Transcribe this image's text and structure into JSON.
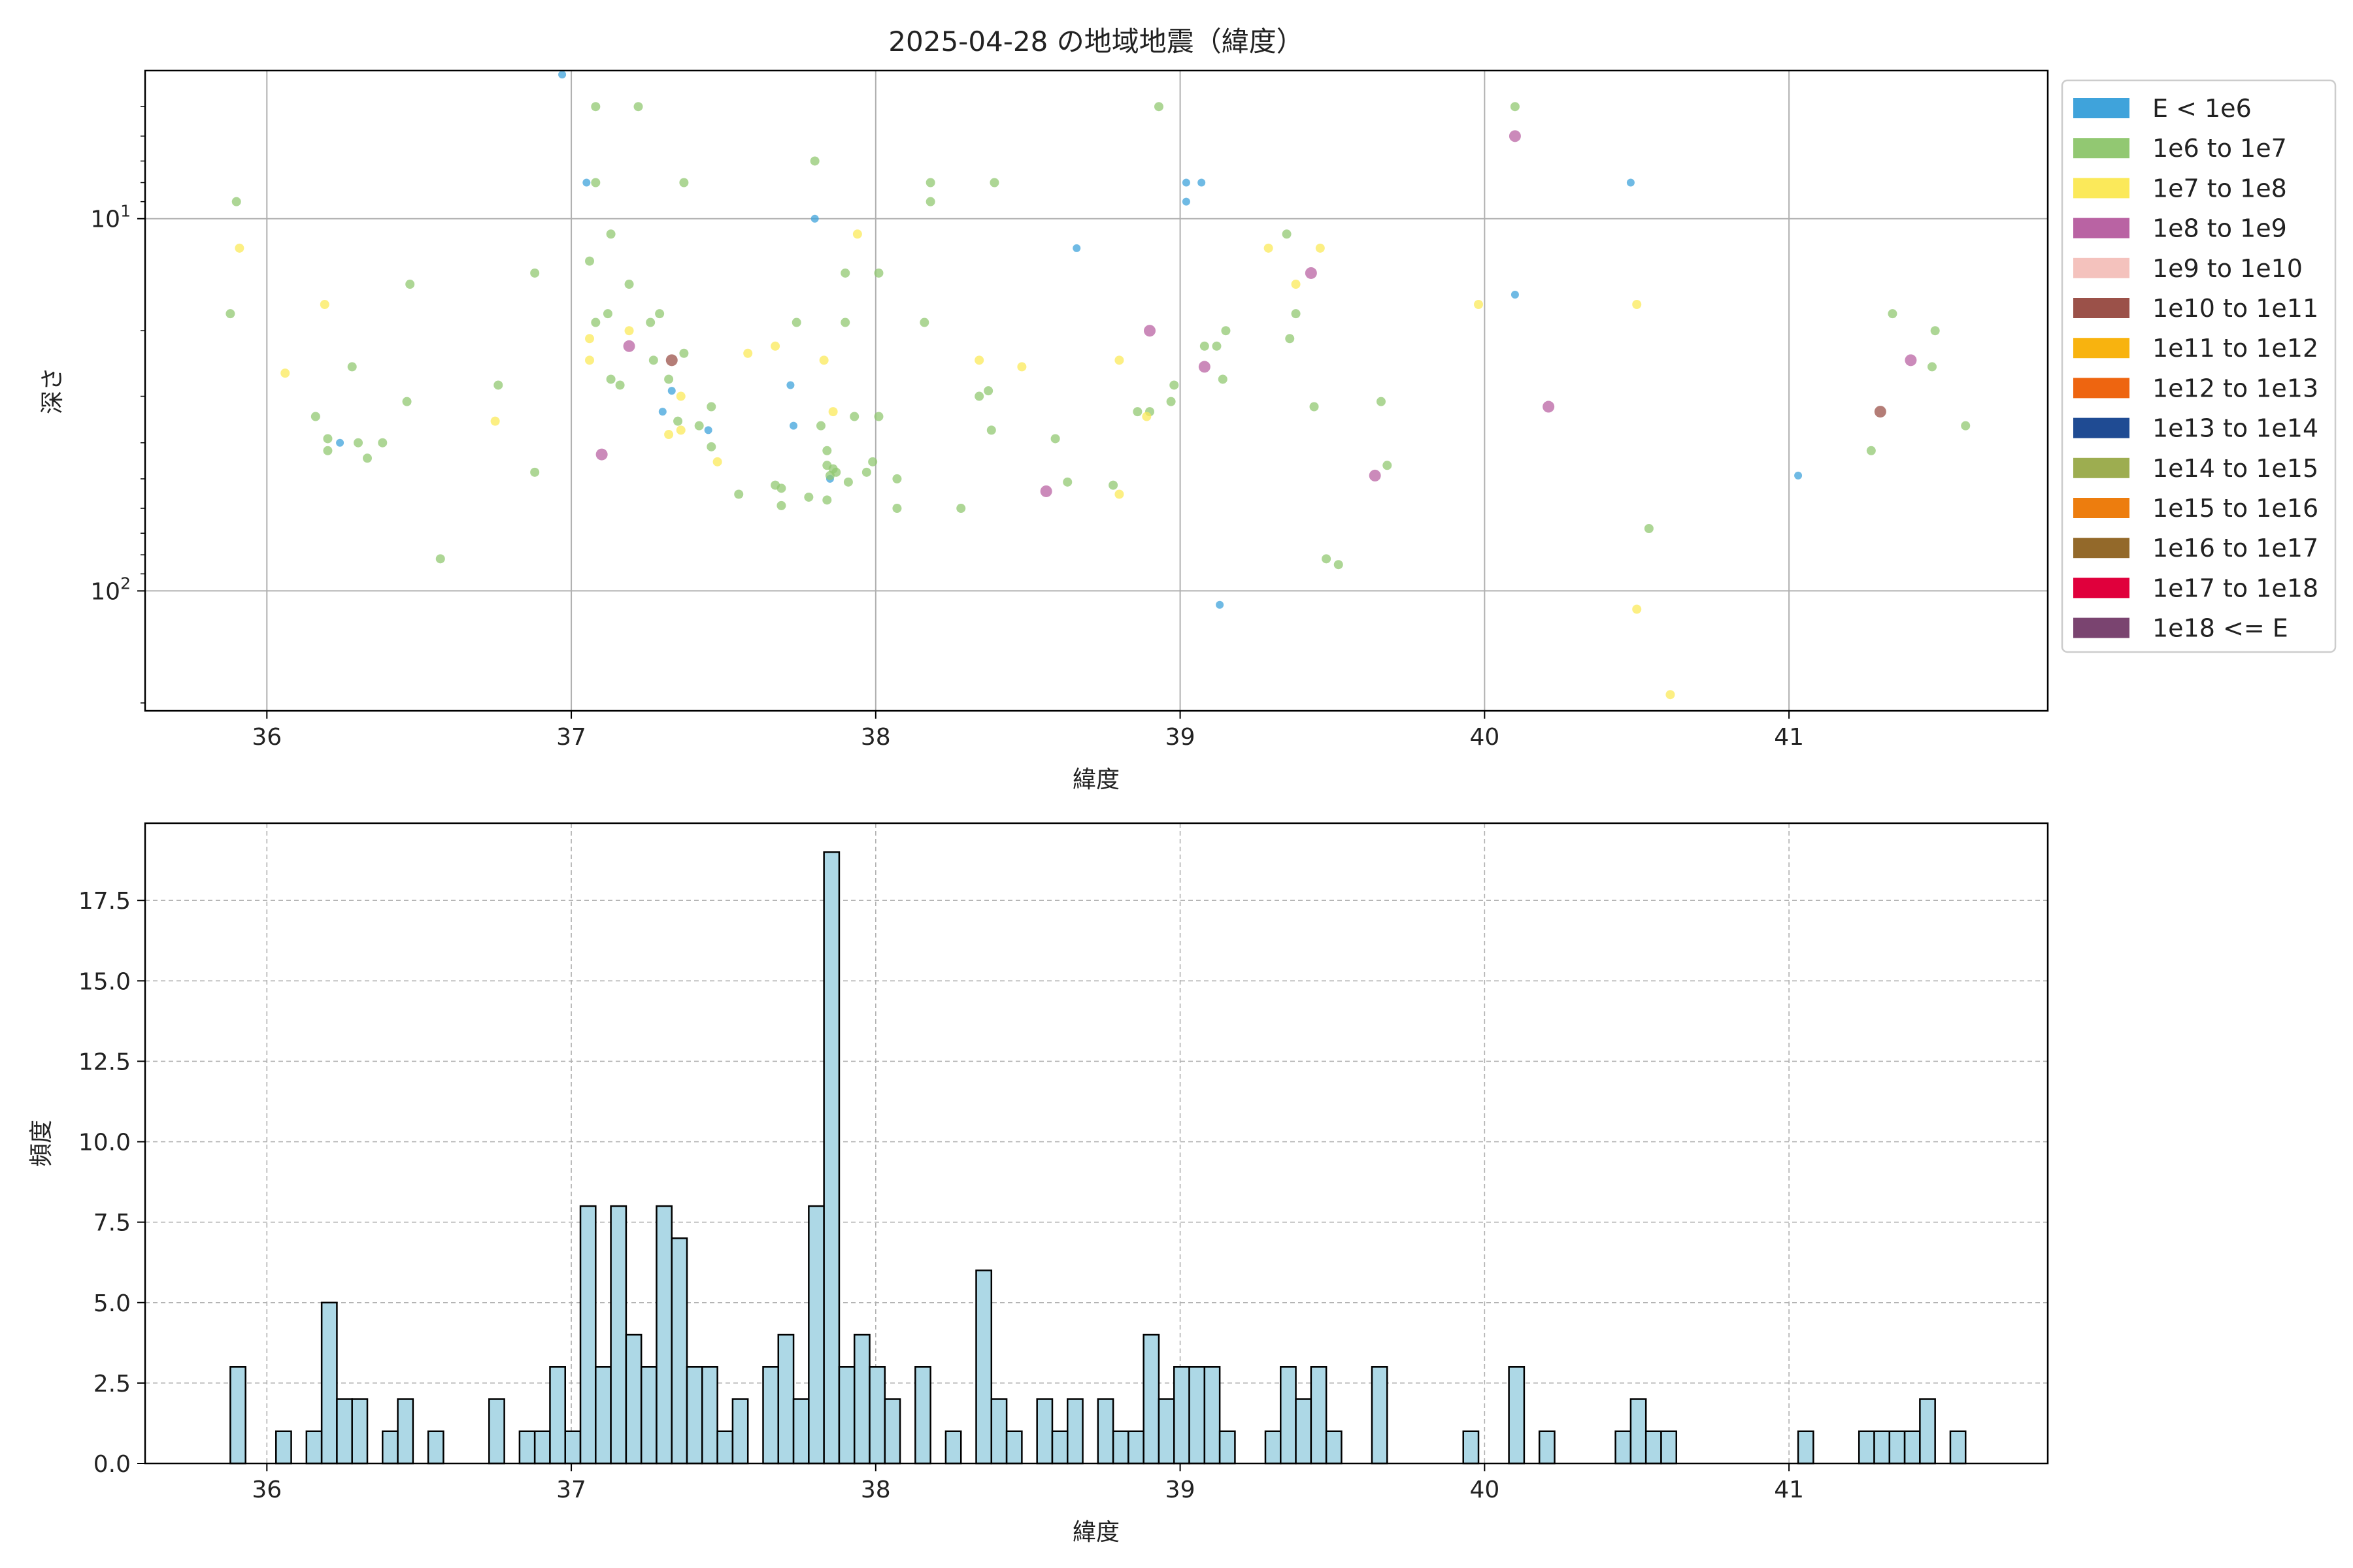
{
  "chart_data": [
    {
      "type": "scatter",
      "title": "2025-04-28 の地域地震（緯度）",
      "xlabel": "緯度",
      "ylabel": "深さ",
      "yscale": "log",
      "y_inverted": true,
      "xlim": [
        35.6,
        41.85
      ],
      "ylim": [
        4,
        210
      ],
      "xticks": [
        36,
        37,
        38,
        39,
        40,
        41
      ],
      "yticks": [
        {
          "value": 10,
          "label": "10^1"
        },
        {
          "value": 100,
          "label": "10^2"
        }
      ],
      "grid": true,
      "legend_position": "right-outside",
      "legend": [
        {
          "label": "E < 1e6",
          "color": "#3fa3db"
        },
        {
          "label": "1e6 to 1e7",
          "color": "#92c872"
        },
        {
          "label": "1e7 to 1e8",
          "color": "#fbe95a"
        },
        {
          "label": "1e8 to 1e9",
          "color": "#b963a3"
        },
        {
          "label": "1e9 to 1e10",
          "color": "#f4c2bd"
        },
        {
          "label": "1e10 to 1e11",
          "color": "#9b5149"
        },
        {
          "label": "1e11 to 1e12",
          "color": "#f8b30f"
        },
        {
          "label": "1e12 to 1e13",
          "color": "#ee6510"
        },
        {
          "label": "1e13 to 1e14",
          "color": "#1f4b93"
        },
        {
          "label": "1e14 to 1e15",
          "color": "#9dad50"
        },
        {
          "label": "1e15 to 1e16",
          "color": "#ed7d0e"
        },
        {
          "label": "1e16 to 1e17",
          "color": "#93692a"
        },
        {
          "label": "1e17 to 1e18",
          "color": "#e0003c"
        },
        {
          "label": "1e18 <= E",
          "color": "#7a4470"
        }
      ],
      "points": [
        {
          "x": 36.97,
          "y": 4.1,
          "c": 0
        },
        {
          "x": 37.05,
          "y": 8,
          "c": 0
        },
        {
          "x": 37.8,
          "y": 10,
          "c": 0
        },
        {
          "x": 39.02,
          "y": 8,
          "c": 0
        },
        {
          "x": 39.07,
          "y": 8,
          "c": 0
        },
        {
          "x": 39.02,
          "y": 9,
          "c": 0
        },
        {
          "x": 38.66,
          "y": 12,
          "c": 0
        },
        {
          "x": 40.1,
          "y": 16,
          "c": 0
        },
        {
          "x": 40.48,
          "y": 8,
          "c": 0
        },
        {
          "x": 36.24,
          "y": 40,
          "c": 0
        },
        {
          "x": 37.3,
          "y": 33,
          "c": 0
        },
        {
          "x": 37.33,
          "y": 29,
          "c": 0
        },
        {
          "x": 37.45,
          "y": 37,
          "c": 0
        },
        {
          "x": 37.72,
          "y": 28,
          "c": 0
        },
        {
          "x": 37.73,
          "y": 36,
          "c": 0
        },
        {
          "x": 37.85,
          "y": 50,
          "c": 0
        },
        {
          "x": 39.13,
          "y": 109,
          "c": 0
        },
        {
          "x": 41.03,
          "y": 49,
          "c": 0
        },
        {
          "x": 35.88,
          "y": 18,
          "c": 1
        },
        {
          "x": 35.9,
          "y": 9,
          "c": 1
        },
        {
          "x": 36.16,
          "y": 34,
          "c": 1
        },
        {
          "x": 36.2,
          "y": 39,
          "c": 1
        },
        {
          "x": 36.2,
          "y": 42,
          "c": 1
        },
        {
          "x": 36.28,
          "y": 25,
          "c": 1
        },
        {
          "x": 36.3,
          "y": 40,
          "c": 1
        },
        {
          "x": 36.33,
          "y": 44,
          "c": 1
        },
        {
          "x": 36.38,
          "y": 40,
          "c": 1
        },
        {
          "x": 36.46,
          "y": 31,
          "c": 1
        },
        {
          "x": 36.47,
          "y": 15,
          "c": 1
        },
        {
          "x": 36.57,
          "y": 82,
          "c": 1
        },
        {
          "x": 36.76,
          "y": 28,
          "c": 1
        },
        {
          "x": 36.88,
          "y": 14,
          "c": 1
        },
        {
          "x": 36.88,
          "y": 48,
          "c": 1
        },
        {
          "x": 37.06,
          "y": 13,
          "c": 1
        },
        {
          "x": 37.08,
          "y": 5,
          "c": 1
        },
        {
          "x": 37.08,
          "y": 8,
          "c": 1
        },
        {
          "x": 37.08,
          "y": 19,
          "c": 1
        },
        {
          "x": 37.13,
          "y": 11,
          "c": 1
        },
        {
          "x": 37.12,
          "y": 18,
          "c": 1
        },
        {
          "x": 37.13,
          "y": 27,
          "c": 1
        },
        {
          "x": 37.16,
          "y": 28,
          "c": 1
        },
        {
          "x": 37.22,
          "y": 5,
          "c": 1
        },
        {
          "x": 37.19,
          "y": 15,
          "c": 1
        },
        {
          "x": 37.26,
          "y": 19,
          "c": 1
        },
        {
          "x": 37.27,
          "y": 24,
          "c": 1
        },
        {
          "x": 37.29,
          "y": 18,
          "c": 1
        },
        {
          "x": 37.32,
          "y": 27,
          "c": 1
        },
        {
          "x": 37.35,
          "y": 35,
          "c": 1
        },
        {
          "x": 37.37,
          "y": 8,
          "c": 1
        },
        {
          "x": 37.37,
          "y": 23,
          "c": 1
        },
        {
          "x": 37.42,
          "y": 36,
          "c": 1
        },
        {
          "x": 37.46,
          "y": 32,
          "c": 1
        },
        {
          "x": 37.46,
          "y": 41,
          "c": 1
        },
        {
          "x": 37.55,
          "y": 55,
          "c": 1
        },
        {
          "x": 37.67,
          "y": 52,
          "c": 1
        },
        {
          "x": 37.69,
          "y": 53,
          "c": 1
        },
        {
          "x": 37.69,
          "y": 59,
          "c": 1
        },
        {
          "x": 37.74,
          "y": 19,
          "c": 1
        },
        {
          "x": 37.78,
          "y": 56,
          "c": 1
        },
        {
          "x": 37.8,
          "y": 7,
          "c": 1
        },
        {
          "x": 37.82,
          "y": 36,
          "c": 1
        },
        {
          "x": 37.84,
          "y": 42,
          "c": 1
        },
        {
          "x": 37.84,
          "y": 46,
          "c": 1
        },
        {
          "x": 37.84,
          "y": 57,
          "c": 1
        },
        {
          "x": 37.85,
          "y": 49,
          "c": 1
        },
        {
          "x": 37.86,
          "y": 47,
          "c": 1
        },
        {
          "x": 37.87,
          "y": 48,
          "c": 1
        },
        {
          "x": 37.9,
          "y": 14,
          "c": 1
        },
        {
          "x": 37.9,
          "y": 19,
          "c": 1
        },
        {
          "x": 37.91,
          "y": 51,
          "c": 1
        },
        {
          "x": 37.93,
          "y": 34,
          "c": 1
        },
        {
          "x": 37.97,
          "y": 48,
          "c": 1
        },
        {
          "x": 37.99,
          "y": 45,
          "c": 1
        },
        {
          "x": 38.01,
          "y": 14,
          "c": 1
        },
        {
          "x": 38.01,
          "y": 34,
          "c": 1
        },
        {
          "x": 38.07,
          "y": 50,
          "c": 1
        },
        {
          "x": 38.07,
          "y": 60,
          "c": 1
        },
        {
          "x": 38.16,
          "y": 19,
          "c": 1
        },
        {
          "x": 38.18,
          "y": 8,
          "c": 1
        },
        {
          "x": 38.18,
          "y": 9,
          "c": 1
        },
        {
          "x": 38.28,
          "y": 60,
          "c": 1
        },
        {
          "x": 38.34,
          "y": 30,
          "c": 1
        },
        {
          "x": 38.37,
          "y": 29,
          "c": 1
        },
        {
          "x": 38.38,
          "y": 37,
          "c": 1
        },
        {
          "x": 38.39,
          "y": 8,
          "c": 1
        },
        {
          "x": 38.59,
          "y": 39,
          "c": 1
        },
        {
          "x": 38.63,
          "y": 51,
          "c": 1
        },
        {
          "x": 38.78,
          "y": 52,
          "c": 1
        },
        {
          "x": 38.86,
          "y": 33,
          "c": 1
        },
        {
          "x": 38.9,
          "y": 33,
          "c": 1
        },
        {
          "x": 38.93,
          "y": 5,
          "c": 1
        },
        {
          "x": 38.97,
          "y": 31,
          "c": 1
        },
        {
          "x": 38.98,
          "y": 28,
          "c": 1
        },
        {
          "x": 39.08,
          "y": 22,
          "c": 1
        },
        {
          "x": 39.12,
          "y": 22,
          "c": 1
        },
        {
          "x": 39.14,
          "y": 27,
          "c": 1
        },
        {
          "x": 39.15,
          "y": 20,
          "c": 1
        },
        {
          "x": 39.35,
          "y": 11,
          "c": 1
        },
        {
          "x": 39.36,
          "y": 21,
          "c": 1
        },
        {
          "x": 39.38,
          "y": 18,
          "c": 1
        },
        {
          "x": 39.44,
          "y": 32,
          "c": 1
        },
        {
          "x": 39.48,
          "y": 82,
          "c": 1
        },
        {
          "x": 39.52,
          "y": 85,
          "c": 1
        },
        {
          "x": 39.66,
          "y": 31,
          "c": 1
        },
        {
          "x": 39.68,
          "y": 46,
          "c": 1
        },
        {
          "x": 40.1,
          "y": 5,
          "c": 1
        },
        {
          "x": 40.54,
          "y": 68,
          "c": 1
        },
        {
          "x": 41.27,
          "y": 42,
          "c": 1
        },
        {
          "x": 41.34,
          "y": 18,
          "c": 1
        },
        {
          "x": 41.47,
          "y": 25,
          "c": 1
        },
        {
          "x": 41.48,
          "y": 20,
          "c": 1
        },
        {
          "x": 41.58,
          "y": 36,
          "c": 1
        },
        {
          "x": 35.91,
          "y": 12,
          "c": 2
        },
        {
          "x": 36.06,
          "y": 26,
          "c": 2
        },
        {
          "x": 36.19,
          "y": 17,
          "c": 2
        },
        {
          "x": 36.75,
          "y": 35,
          "c": 2
        },
        {
          "x": 37.06,
          "y": 21,
          "c": 2
        },
        {
          "x": 37.06,
          "y": 24,
          "c": 2
        },
        {
          "x": 37.19,
          "y": 20,
          "c": 2
        },
        {
          "x": 37.32,
          "y": 38,
          "c": 2
        },
        {
          "x": 37.36,
          "y": 30,
          "c": 2
        },
        {
          "x": 37.36,
          "y": 37,
          "c": 2
        },
        {
          "x": 37.48,
          "y": 45,
          "c": 2
        },
        {
          "x": 37.58,
          "y": 23,
          "c": 2
        },
        {
          "x": 37.67,
          "y": 22,
          "c": 2
        },
        {
          "x": 37.83,
          "y": 24,
          "c": 2
        },
        {
          "x": 37.86,
          "y": 33,
          "c": 2
        },
        {
          "x": 37.94,
          "y": 11,
          "c": 2
        },
        {
          "x": 38.34,
          "y": 24,
          "c": 2
        },
        {
          "x": 38.48,
          "y": 25,
          "c": 2
        },
        {
          "x": 38.8,
          "y": 24,
          "c": 2
        },
        {
          "x": 38.8,
          "y": 55,
          "c": 2
        },
        {
          "x": 38.89,
          "y": 34,
          "c": 2
        },
        {
          "x": 39.29,
          "y": 12,
          "c": 2
        },
        {
          "x": 39.38,
          "y": 15,
          "c": 2
        },
        {
          "x": 39.46,
          "y": 12,
          "c": 2
        },
        {
          "x": 39.98,
          "y": 17,
          "c": 2
        },
        {
          "x": 40.5,
          "y": 17,
          "c": 2
        },
        {
          "x": 40.5,
          "y": 112,
          "c": 2
        },
        {
          "x": 40.61,
          "y": 190,
          "c": 2
        },
        {
          "x": 37.1,
          "y": 43,
          "c": 3
        },
        {
          "x": 37.19,
          "y": 22,
          "c": 3
        },
        {
          "x": 38.56,
          "y": 54,
          "c": 3
        },
        {
          "x": 38.9,
          "y": 20,
          "c": 3
        },
        {
          "x": 39.08,
          "y": 25,
          "c": 3
        },
        {
          "x": 39.43,
          "y": 14,
          "c": 3
        },
        {
          "x": 39.64,
          "y": 49,
          "c": 3
        },
        {
          "x": 40.1,
          "y": 6,
          "c": 3
        },
        {
          "x": 40.21,
          "y": 32,
          "c": 3
        },
        {
          "x": 41.4,
          "y": 24,
          "c": 3
        },
        {
          "x": 37.33,
          "y": 24,
          "c": 5
        },
        {
          "x": 41.3,
          "y": 33,
          "c": 5
        }
      ]
    },
    {
      "type": "bar",
      "title": "",
      "xlabel": "緯度",
      "ylabel": "頻度",
      "xlim": [
        35.6,
        41.85
      ],
      "ylim": [
        0,
        19.9
      ],
      "xticks": [
        36,
        37,
        38,
        39,
        40,
        41
      ],
      "yticks": [
        0.0,
        2.5,
        5.0,
        7.5,
        10.0,
        12.5,
        15.0,
        17.5
      ],
      "grid": "dashed",
      "bar_color": "#add8e6",
      "bin_width": 0.05,
      "bins_start": [
        35.88,
        35.88,
        35.88,
        35.88,
        35.88,
        35.88,
        35.88,
        35.88,
        35.88,
        35.88
      ],
      "bin_starts": [
        35.88,
        36.03,
        36.13,
        36.18,
        36.23,
        36.28,
        36.38,
        36.43,
        36.53,
        36.73,
        36.83,
        36.88,
        36.93,
        36.98,
        37.03,
        37.08,
        37.13,
        37.18,
        37.23,
        37.28,
        37.33,
        37.38,
        37.43,
        37.48,
        37.53,
        37.63,
        37.68,
        37.73,
        37.78,
        37.83,
        37.88,
        37.93,
        37.98,
        38.03,
        38.13,
        38.23,
        38.33,
        38.38,
        38.43,
        38.53,
        38.58,
        38.63,
        38.73,
        38.78,
        38.83,
        38.88,
        38.93,
        38.98,
        39.03,
        39.08,
        39.13,
        39.28,
        39.33,
        39.38,
        39.43,
        39.48,
        39.63,
        39.93,
        40.08,
        40.18,
        40.43,
        40.48,
        40.53,
        40.58,
        41.03,
        41.23,
        41.28,
        41.33,
        41.38,
        41.43,
        41.53
      ],
      "values": [
        3,
        1,
        1,
        5,
        2,
        2,
        1,
        2,
        1,
        2,
        1,
        1,
        3,
        1,
        8,
        3,
        8,
        4,
        3,
        8,
        7,
        3,
        3,
        1,
        2,
        3,
        4,
        2,
        8,
        19,
        3,
        4,
        3,
        2,
        3,
        1,
        6,
        2,
        1,
        2,
        1,
        2,
        2,
        1,
        1,
        4,
        2,
        3,
        3,
        3,
        1,
        1,
        3,
        2,
        3,
        1,
        3,
        1,
        3,
        1,
        1,
        2,
        1,
        1,
        1,
        1,
        1,
        1,
        1,
        2,
        1
      ]
    }
  ]
}
